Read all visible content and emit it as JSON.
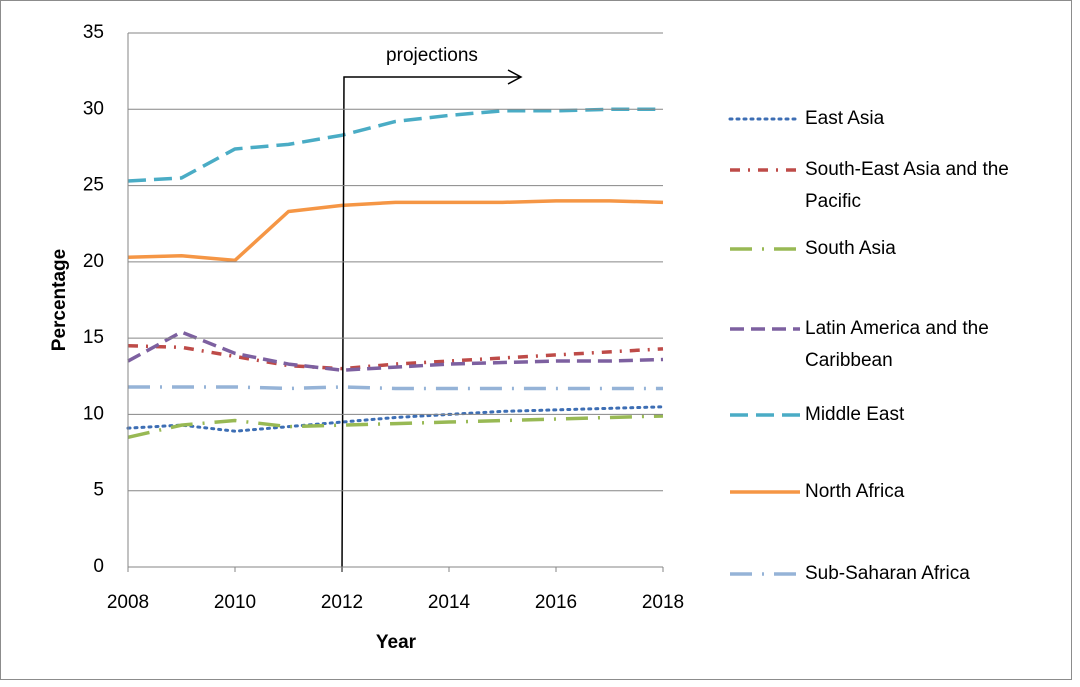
{
  "chart_data": {
    "type": "line",
    "annotation": "projections",
    "xlabel": "Year",
    "ylabel": "Percentage",
    "x": [
      2008,
      2009,
      2010,
      2011,
      2012,
      2013,
      2014,
      2015,
      2016,
      2017,
      2018
    ],
    "xlim": [
      2008,
      2018
    ],
    "xticks": [
      2008,
      2010,
      2012,
      2014,
      2016,
      2018
    ],
    "ylim": [
      0,
      35
    ],
    "yticks": [
      0,
      5,
      10,
      15,
      20,
      25,
      30,
      35
    ],
    "grid": true,
    "legend": "right",
    "series": [
      {
        "name": "East Asia",
        "color": "#3d6eb4",
        "line_style": "dotted",
        "values": [
          9.1,
          9.3,
          8.9,
          9.2,
          9.5,
          9.8,
          10.0,
          10.2,
          10.3,
          10.4,
          10.5
        ]
      },
      {
        "name": "South-East Asia and the Pacific",
        "color": "#be4b48",
        "line_style": "dash-dot",
        "values": [
          14.5,
          14.4,
          13.8,
          13.2,
          13.0,
          13.3,
          13.5,
          13.7,
          13.9,
          14.1,
          14.3
        ]
      },
      {
        "name": "South Asia",
        "color": "#98b954",
        "line_style": "long-dash-dot",
        "values": [
          8.5,
          9.3,
          9.6,
          9.2,
          9.3,
          9.4,
          9.5,
          9.6,
          9.7,
          9.8,
          9.9
        ]
      },
      {
        "name": "Latin America and the Caribbean",
        "color": "#7d60a0",
        "line_style": "dashed",
        "values": [
          13.5,
          15.4,
          14.0,
          13.3,
          12.9,
          13.1,
          13.3,
          13.4,
          13.5,
          13.5,
          13.6
        ]
      },
      {
        "name": "Middle East",
        "color": "#4aacc5",
        "line_style": "long-dashed",
        "values": [
          25.3,
          25.5,
          27.4,
          27.7,
          28.3,
          29.2,
          29.6,
          29.9,
          29.9,
          30.0,
          30.0
        ]
      },
      {
        "name": "North Africa",
        "color": "#f59645",
        "line_style": "solid",
        "values": [
          20.3,
          20.4,
          20.1,
          23.3,
          23.7,
          23.9,
          23.9,
          23.9,
          24.0,
          24.0,
          23.9
        ]
      },
      {
        "name": "Sub-Saharan Africa",
        "color": "#95b3d7",
        "line_style": "long-dash-dot",
        "values": [
          11.8,
          11.8,
          11.8,
          11.7,
          11.8,
          11.7,
          11.7,
          11.7,
          11.7,
          11.7,
          11.7
        ]
      }
    ]
  }
}
